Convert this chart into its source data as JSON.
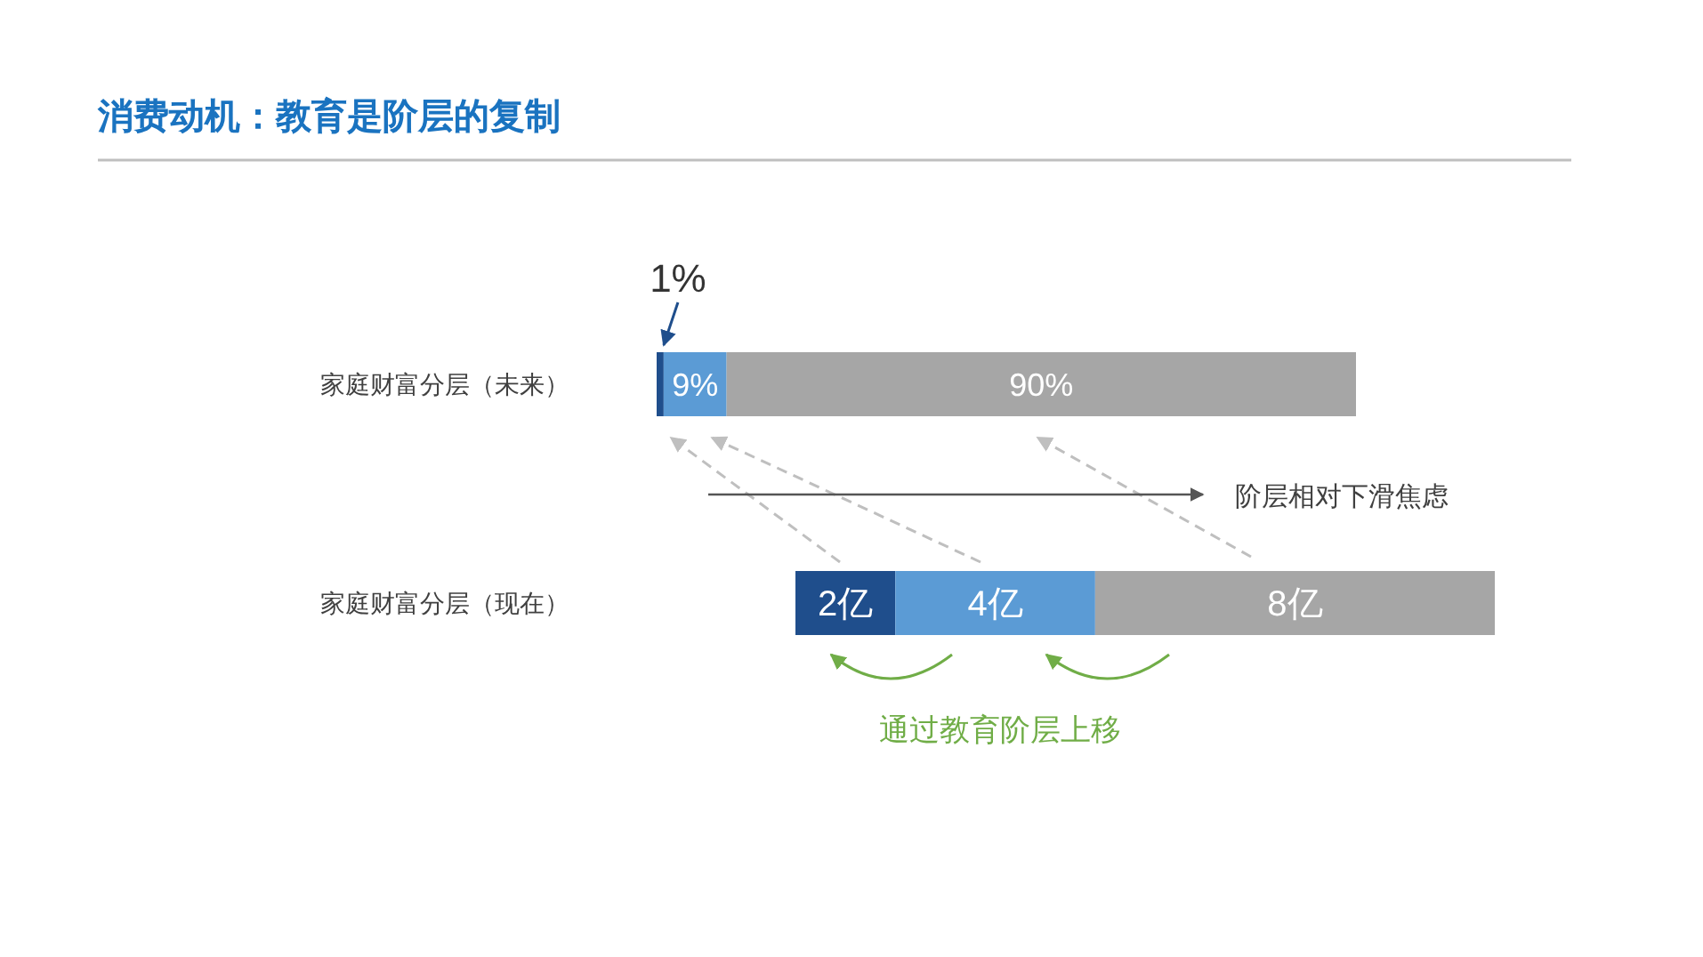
{
  "chart_data": [
    {
      "type": "bar",
      "orientation": "horizontal",
      "stacked": true,
      "title": "消费动机：教育是阶层的复制",
      "categories": [
        "家庭财富分层（未来）"
      ],
      "series": [
        {
          "color": "#1f4e8c",
          "values": [
            1
          ],
          "value_labels": [
            "1%"
          ]
        },
        {
          "color": "#5b9bd5",
          "values": [
            9
          ],
          "value_labels": [
            "9%"
          ]
        },
        {
          "color": "#a6a6a6",
          "values": [
            90
          ],
          "value_labels": [
            "90%"
          ]
        }
      ]
    },
    {
      "type": "bar",
      "orientation": "horizontal",
      "stacked": true,
      "categories": [
        "家庭财富分层（现在）"
      ],
      "annotations": [
        "阶层相对下滑焦虑",
        "通过教育阶层上移"
      ],
      "series": [
        {
          "color": "#1f4e8c",
          "values": [
            2
          ],
          "value_labels": [
            "2亿"
          ]
        },
        {
          "color": "#5b9bd5",
          "values": [
            4
          ],
          "value_labels": [
            "4亿"
          ]
        },
        {
          "color": "#a6a6a6",
          "values": [
            8
          ],
          "value_labels": [
            "8亿"
          ]
        }
      ]
    }
  ]
}
